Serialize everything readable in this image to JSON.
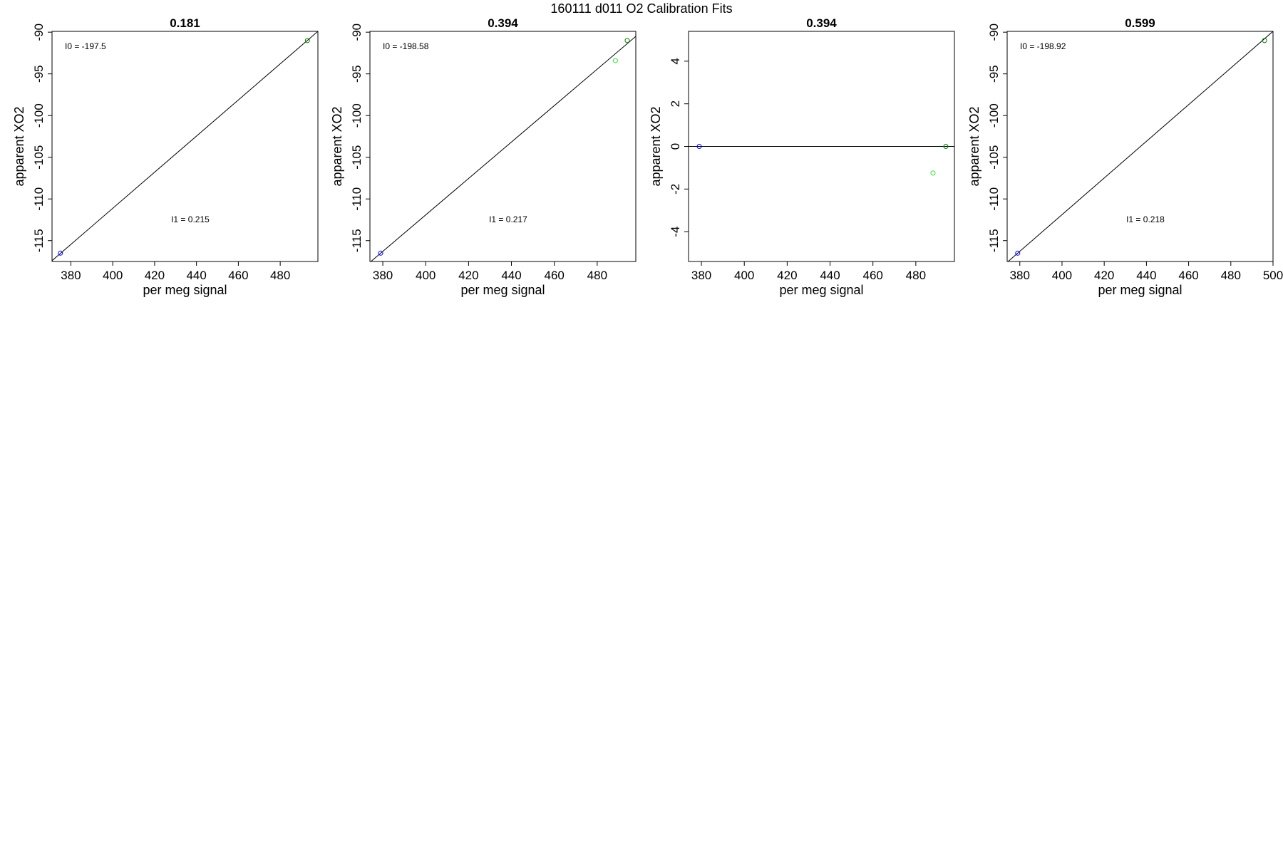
{
  "figure": {
    "title": "160111   d011   O2 Calibration Fits"
  },
  "chart_data": [
    {
      "type": "scatter",
      "title": "0.181",
      "xlabel": "per meg signal",
      "ylabel": "apparent XO2",
      "xlim": [
        371,
        498
      ],
      "ylim": [
        -117.5,
        -89.9
      ],
      "xticks": [
        380,
        400,
        420,
        440,
        460,
        480
      ],
      "yticks": [
        -115,
        -110,
        -105,
        -100,
        -95,
        -90
      ],
      "grid": false,
      "points": [
        {
          "x": 375,
          "y": -116.5,
          "color": "#0000ff"
        },
        {
          "x": 493,
          "y": -91,
          "color": "#008000"
        }
      ],
      "fit_line": {
        "x": [
          371,
          498
        ],
        "y": [
          -117.4,
          -89.9
        ]
      },
      "annotations": [
        {
          "label": "I0 =",
          "value": "-197.5"
        },
        {
          "label": "I1 =",
          "value": "0.215"
        }
      ]
    },
    {
      "type": "scatter",
      "title": "0.394",
      "xlabel": "per meg signal",
      "ylabel": "apparent XO2",
      "xlim": [
        374,
        498
      ],
      "ylim": [
        -117.5,
        -89.9
      ],
      "xticks": [
        380,
        400,
        420,
        440,
        460,
        480
      ],
      "yticks": [
        -115,
        -110,
        -105,
        -100,
        -95,
        -90
      ],
      "grid": false,
      "points": [
        {
          "x": 379,
          "y": -116.5,
          "color": "#0000ff"
        },
        {
          "x": 488.5,
          "y": -93.4,
          "color": "#33dd33"
        },
        {
          "x": 494,
          "y": -91,
          "color": "#008000"
        }
      ],
      "fit_line": {
        "x": [
          374,
          498
        ],
        "y": [
          -117.6,
          -90.5
        ]
      },
      "annotations": [
        {
          "label": "I0 =",
          "value": "-198.58"
        },
        {
          "label": "I1 =",
          "value": "0.217"
        }
      ]
    },
    {
      "type": "scatter",
      "title": "0.394",
      "xlabel": "per meg signal",
      "ylabel": "apparent XO2",
      "xlim": [
        374,
        498
      ],
      "ylim": [
        -5.4,
        5.4
      ],
      "xticks": [
        380,
        400,
        420,
        440,
        460,
        480
      ],
      "yticks": [
        -4,
        -2,
        0,
        2,
        4
      ],
      "grid": false,
      "points": [
        {
          "x": 379,
          "y": 0,
          "color": "#0000ff"
        },
        {
          "x": 488,
          "y": -1.25,
          "color": "#33dd33"
        },
        {
          "x": 494,
          "y": 0,
          "color": "#008000"
        }
      ],
      "fit_line": {
        "x": [
          374,
          498
        ],
        "y": [
          0,
          0
        ]
      },
      "annotations": []
    },
    {
      "type": "scatter",
      "title": "0.599",
      "xlabel": "per meg signal",
      "ylabel": "apparent XO2",
      "xlim": [
        374,
        500
      ],
      "ylim": [
        -117.5,
        -89.9
      ],
      "xticks": [
        380,
        400,
        420,
        440,
        460,
        480,
        500
      ],
      "yticks": [
        -115,
        -110,
        -105,
        -100,
        -95,
        -90
      ],
      "grid": false,
      "points": [
        {
          "x": 379,
          "y": -116.5,
          "color": "#0000ff"
        },
        {
          "x": 496,
          "y": -91,
          "color": "#008000"
        }
      ],
      "fit_line": {
        "x": [
          374,
          500
        ],
        "y": [
          -117.6,
          -89.9
        ]
      },
      "annotations": [
        {
          "label": "I0 =",
          "value": "-198.92"
        },
        {
          "label": "I1 =",
          "value": "0.218"
        }
      ]
    }
  ]
}
